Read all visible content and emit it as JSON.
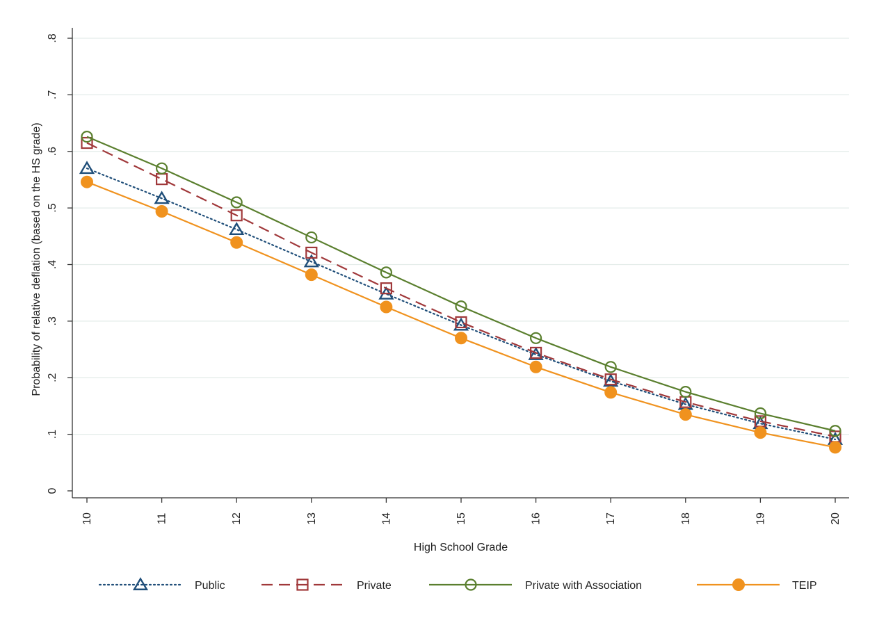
{
  "chart_data": {
    "type": "line",
    "xlabel": "High School Grade",
    "ylabel": "Probability of relative deflation (based on the HS grade)",
    "x": [
      10,
      11,
      12,
      13,
      14,
      15,
      16,
      17,
      18,
      19,
      20
    ],
    "xticks": [
      "10",
      "11",
      "12",
      "13",
      "14",
      "15",
      "16",
      "17",
      "18",
      "19",
      "20"
    ],
    "xlim": [
      10,
      20
    ],
    "yticks": [
      "0",
      ".1",
      ".2",
      ".3",
      ".4",
      ".5",
      ".6",
      ".7",
      ".8"
    ],
    "ytick_values": [
      0,
      0.1,
      0.2,
      0.3,
      0.4,
      0.5,
      0.6,
      0.7,
      0.8
    ],
    "ylim": [
      0,
      0.8
    ],
    "grid": true,
    "legend_position": "bottom",
    "series": [
      {
        "name": "Public",
        "color": "#1f4e79",
        "line_style": "dotted",
        "marker": "triangle-open",
        "values": [
          0.57,
          0.517,
          0.462,
          0.405,
          0.348,
          0.293,
          0.241,
          0.194,
          0.153,
          0.119,
          0.091
        ]
      },
      {
        "name": "Private",
        "color": "#a0383a",
        "line_style": "dashed",
        "marker": "square-open",
        "values": [
          0.615,
          0.551,
          0.487,
          0.421,
          0.358,
          0.298,
          0.244,
          0.197,
          0.157,
          0.123,
          0.096
        ]
      },
      {
        "name": "Private with Association",
        "color": "#5a7f2e",
        "line_style": "solid",
        "marker": "circle-open",
        "values": [
          0.626,
          0.57,
          0.51,
          0.448,
          0.386,
          0.326,
          0.27,
          0.219,
          0.175,
          0.137,
          0.106
        ]
      },
      {
        "name": "TEIP",
        "color": "#f0921e",
        "line_style": "solid",
        "marker": "circle-filled",
        "values": [
          0.546,
          0.494,
          0.439,
          0.382,
          0.325,
          0.27,
          0.219,
          0.174,
          0.135,
          0.103,
          0.077
        ]
      }
    ]
  }
}
